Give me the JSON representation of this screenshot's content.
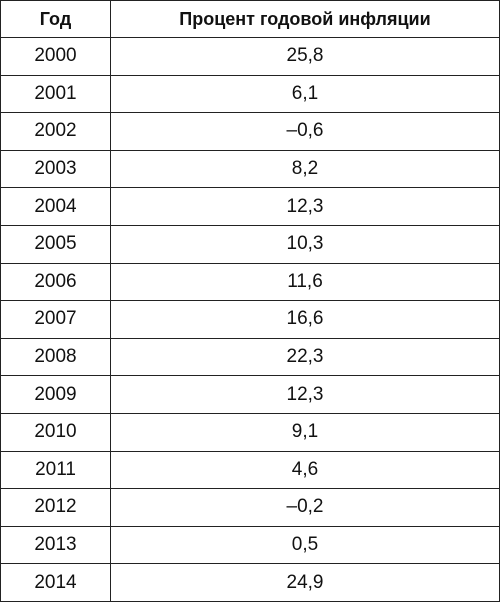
{
  "table": {
    "header": [
      "Год",
      "Процент годовой инфляции"
    ],
    "rows": [
      [
        "2000",
        "25,8"
      ],
      [
        "2001",
        "6,1"
      ],
      [
        "2002",
        "–0,6"
      ],
      [
        "2003",
        "8,2"
      ],
      [
        "2004",
        "12,3"
      ],
      [
        "2005",
        "10,3"
      ],
      [
        "2006",
        "11,6"
      ],
      [
        "2007",
        "16,6"
      ],
      [
        "2008",
        "22,3"
      ],
      [
        "2009",
        "12,3"
      ],
      [
        "2010",
        "9,1"
      ],
      [
        "2011",
        "4,6"
      ],
      [
        "2012",
        "–0,2"
      ],
      [
        "2013",
        "0,5"
      ],
      [
        "2014",
        "24,9"
      ]
    ]
  }
}
